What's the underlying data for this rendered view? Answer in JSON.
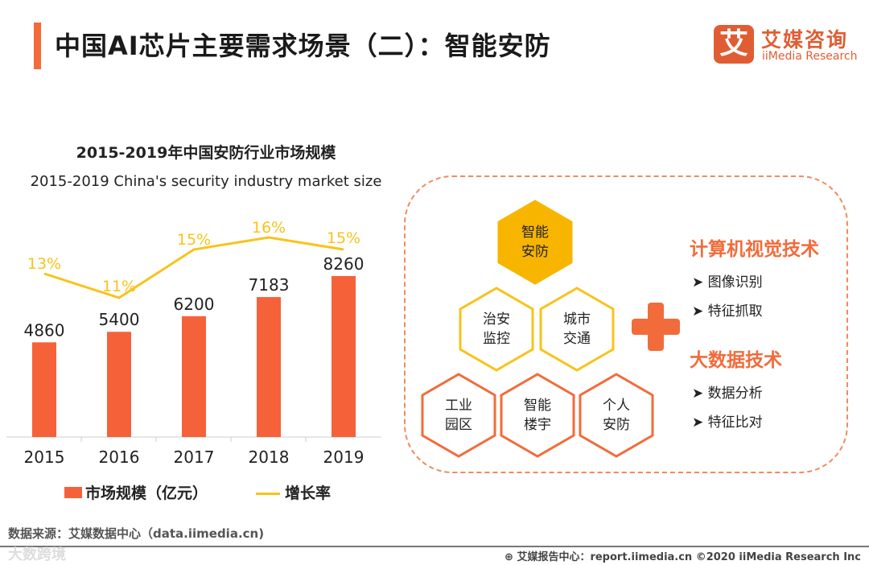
{
  "header": {
    "title": "中国AI芯片主要需求场景（二）：智能安防",
    "logo_mark": "艾",
    "logo_cn": "艾媒咨询",
    "logo_en": "iiMedia Research"
  },
  "chart_data": {
    "type": "bar",
    "title": "2015-2019年中国安防行业市场规模",
    "subtitle": "2015-2019 China's security industry market size",
    "categories": [
      "2015",
      "2016",
      "2017",
      "2018",
      "2019"
    ],
    "series": [
      {
        "name": "市场规模（亿元）",
        "type": "bar",
        "color": "#f5623a",
        "values": [
          4860,
          5400,
          6200,
          7183,
          8260
        ]
      },
      {
        "name": "增长率",
        "type": "line",
        "color": "#f8c31a",
        "values": [
          13,
          11,
          15,
          16,
          15
        ],
        "labels": [
          "13%",
          "11%",
          "15%",
          "16%",
          "15%"
        ]
      }
    ],
    "legend_position": "bottom",
    "grid": false
  },
  "diagram": {
    "hexes": [
      {
        "text": "智能\n安防",
        "lines": [
          "智能",
          "安防"
        ]
      },
      {
        "lines": [
          "治安",
          "监控"
        ]
      },
      {
        "lines": [
          "城市",
          "交通"
        ]
      },
      {
        "lines": [
          "工业",
          "园区"
        ]
      },
      {
        "lines": [
          "智能",
          "楼宇"
        ]
      },
      {
        "lines": [
          "个人",
          "安防"
        ]
      }
    ],
    "tech1": {
      "title": "计算机视觉技术",
      "items": [
        "图像识别",
        "特征抓取"
      ]
    },
    "tech2": {
      "title": "大数据技术",
      "items": [
        "数据分析",
        "特征比对"
      ]
    }
  },
  "footer": {
    "source": "数据来源：艾媒数据中心（data.iimedia.cn)",
    "report": "艾媒报告中心：report.iimedia.cn   ©2020  iiMedia Research  Inc",
    "watermark": "大数跨境"
  }
}
